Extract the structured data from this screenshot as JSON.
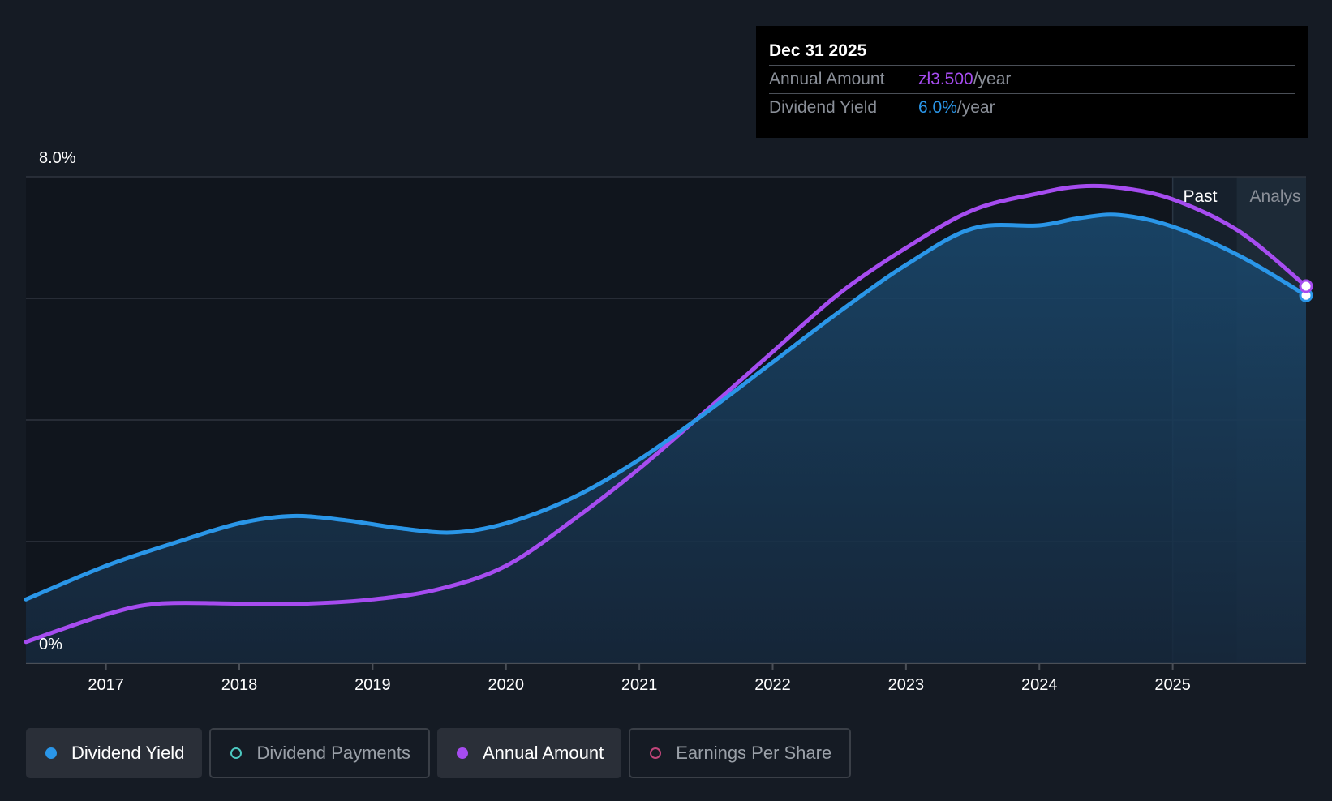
{
  "tooltip": {
    "date": "Dec 31 2025",
    "rows": [
      {
        "label": "Annual Amount",
        "value": "zł3.500",
        "unit": "/year",
        "color": "#a64cf0"
      },
      {
        "label": "Dividend Yield",
        "value": "6.0%",
        "unit": "/year",
        "color": "#2a96e8"
      }
    ]
  },
  "region_labels": {
    "past": "Past",
    "analyst": "Analys"
  },
  "legend": [
    {
      "label": "Dividend Yield",
      "color": "#2a96e8",
      "style": "filled",
      "active": true
    },
    {
      "label": "Dividend Payments",
      "color": "#4cc8c0",
      "style": "hollow",
      "active": false
    },
    {
      "label": "Annual Amount",
      "color": "#a64cf0",
      "style": "filled",
      "active": true
    },
    {
      "label": "Earnings Per Share",
      "color": "#c0457a",
      "style": "hollow",
      "active": false
    }
  ],
  "chart_data": {
    "type": "line",
    "x_ticks": [
      2017,
      2018,
      2019,
      2020,
      2021,
      2022,
      2023,
      2024,
      2025
    ],
    "xlim": [
      2016.4,
      2026.0
    ],
    "ylim": [
      0,
      8
    ],
    "y_tick_labels": [
      {
        "value": 0,
        "label": "0%"
      },
      {
        "value": 8,
        "label": "8.0%"
      }
    ],
    "gridlines_y": [
      0,
      2,
      4,
      6,
      8
    ],
    "past_boundary_x": 2025.0,
    "forecast_start_x": 2025.48,
    "series": [
      {
        "name": "Dividend Yield",
        "color": "#2a96e8",
        "fill": true,
        "points": [
          [
            2016.4,
            1.05
          ],
          [
            2017.0,
            1.6
          ],
          [
            2017.5,
            1.97
          ],
          [
            2018.0,
            2.3
          ],
          [
            2018.4,
            2.42
          ],
          [
            2018.8,
            2.35
          ],
          [
            2019.2,
            2.22
          ],
          [
            2019.6,
            2.15
          ],
          [
            2020.0,
            2.3
          ],
          [
            2020.5,
            2.72
          ],
          [
            2021.0,
            3.35
          ],
          [
            2021.5,
            4.12
          ],
          [
            2022.0,
            4.95
          ],
          [
            2022.5,
            5.78
          ],
          [
            2023.0,
            6.55
          ],
          [
            2023.5,
            7.15
          ],
          [
            2024.0,
            7.2
          ],
          [
            2024.3,
            7.32
          ],
          [
            2024.6,
            7.37
          ],
          [
            2025.0,
            7.18
          ],
          [
            2025.5,
            6.7
          ],
          [
            2026.0,
            6.05
          ]
        ]
      },
      {
        "name": "Annual Amount",
        "color": "#a64cf0",
        "fill": false,
        "points": [
          [
            2016.4,
            0.35
          ],
          [
            2017.0,
            0.8
          ],
          [
            2017.4,
            0.98
          ],
          [
            2018.0,
            0.98
          ],
          [
            2018.5,
            0.98
          ],
          [
            2019.0,
            1.05
          ],
          [
            2019.5,
            1.22
          ],
          [
            2020.0,
            1.6
          ],
          [
            2020.5,
            2.35
          ],
          [
            2021.0,
            3.2
          ],
          [
            2021.5,
            4.15
          ],
          [
            2022.0,
            5.12
          ],
          [
            2022.5,
            6.08
          ],
          [
            2023.0,
            6.83
          ],
          [
            2023.5,
            7.45
          ],
          [
            2024.0,
            7.73
          ],
          [
            2024.3,
            7.84
          ],
          [
            2024.6,
            7.82
          ],
          [
            2025.0,
            7.63
          ],
          [
            2025.5,
            7.1
          ],
          [
            2026.0,
            6.2
          ]
        ]
      }
    ]
  }
}
